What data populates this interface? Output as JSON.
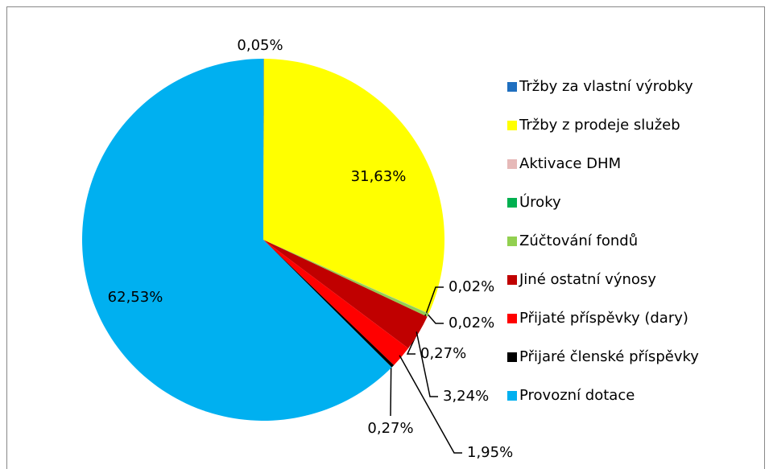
{
  "chart_data": {
    "type": "pie",
    "categories": [
      "Tržby za vlastní výrobky",
      "Tržby z prodeje služeb",
      "Aktivace DHM",
      "Úroky",
      "Zúčtování fondů",
      "Jiné ostatní výnosy",
      "Přijaté příspěvky (dary)",
      "Přijaré členské příspěvky",
      "Provozní dotace"
    ],
    "values": [
      0.05,
      31.63,
      0.02,
      0.02,
      0.27,
      3.24,
      1.95,
      0.27,
      62.53
    ],
    "value_labels": [
      "0,05%",
      "31,63%",
      "0,02%",
      "0,02%",
      "0,27%",
      "3,24%",
      "1,95%",
      "0,27%",
      "62,53%"
    ],
    "colors": [
      "#1f6fbf",
      "#ffff00",
      "#e6b9b8",
      "#00b050",
      "#92d050",
      "#c00000",
      "#ff0000",
      "#000000",
      "#00b0f0"
    ],
    "legend": "right"
  }
}
